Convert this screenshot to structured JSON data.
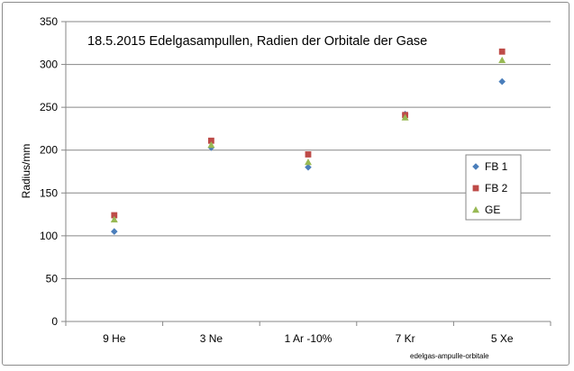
{
  "chart_data": {
    "type": "scatter",
    "title": "18.5.2015   Edelgasampullen, Radien der Orbitale der Gase",
    "ylabel": "Radius/mm",
    "xlabel": "",
    "categories": [
      "9 He",
      "3 Ne",
      "1 Ar -10%",
      "7 Kr",
      "5 Xe"
    ],
    "ylim": [
      0,
      350
    ],
    "yticks": [
      0,
      50,
      100,
      150,
      200,
      250,
      300,
      350
    ],
    "grid": true,
    "legend_position": "right",
    "series": [
      {
        "name": "FB 1",
        "marker": "diamond",
        "color": "#4a7ebb",
        "values": [
          105,
          203,
          180,
          242,
          280
        ]
      },
      {
        "name": "FB 2",
        "marker": "square",
        "color": "#be4b48",
        "values": [
          124,
          211,
          195,
          241,
          315
        ]
      },
      {
        "name": "GE",
        "marker": "triangle",
        "color": "#98b954",
        "values": [
          119,
          206,
          186,
          238,
          305
        ]
      }
    ],
    "footnote": "edelgas-ampulle-orbitale"
  }
}
